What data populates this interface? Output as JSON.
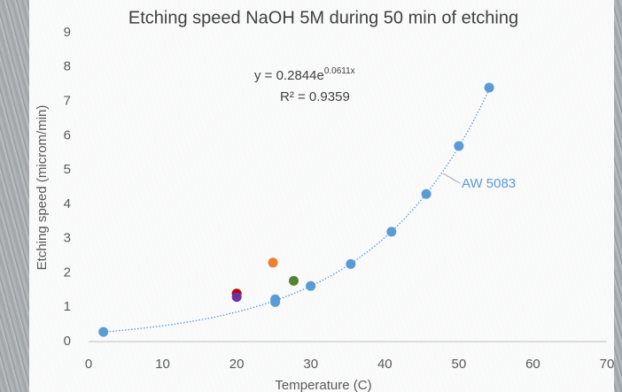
{
  "chart_data": {
    "type": "scatter",
    "title": "Etching speed NaOH 5M during 50 min of etching",
    "x_label": "Temperature (C)",
    "y_label": "Etching speed (microm/min)",
    "xlim": [
      0,
      70
    ],
    "xticks": [
      0,
      10,
      20,
      30,
      40,
      50,
      60,
      70
    ],
    "ylim": [
      0,
      9
    ],
    "yticks": [
      0,
      1,
      2,
      3,
      4,
      5,
      6,
      7,
      8,
      9
    ],
    "grid": false,
    "trendline": "exponential",
    "equation": {
      "text": "y = 0.2844e",
      "exponent": "0.0611x"
    },
    "r_squared": "R² = 0.9359",
    "series": [
      {
        "name": "AW 5083",
        "color": "#5b9bd5",
        "x": [
          2,
          25.2,
          25.2,
          30,
          35.4,
          40.9,
          45.6,
          50,
          54.1
        ],
        "values": [
          0.28,
          1.23,
          1.15,
          1.62,
          2.26,
          3.2,
          4.3,
          5.7,
          7.4
        ]
      },
      {
        "color": "#ed7d31",
        "x": [
          24.9
        ],
        "values": [
          2.3
        ]
      },
      {
        "color": "#c00000",
        "x": [
          20
        ],
        "values": [
          1.4
        ]
      },
      {
        "color": "#7030a0",
        "x": [
          20
        ],
        "values": [
          1.3
        ]
      },
      {
        "color": "#548235",
        "x": [
          27.7
        ],
        "values": [
          1.77
        ]
      }
    ]
  }
}
